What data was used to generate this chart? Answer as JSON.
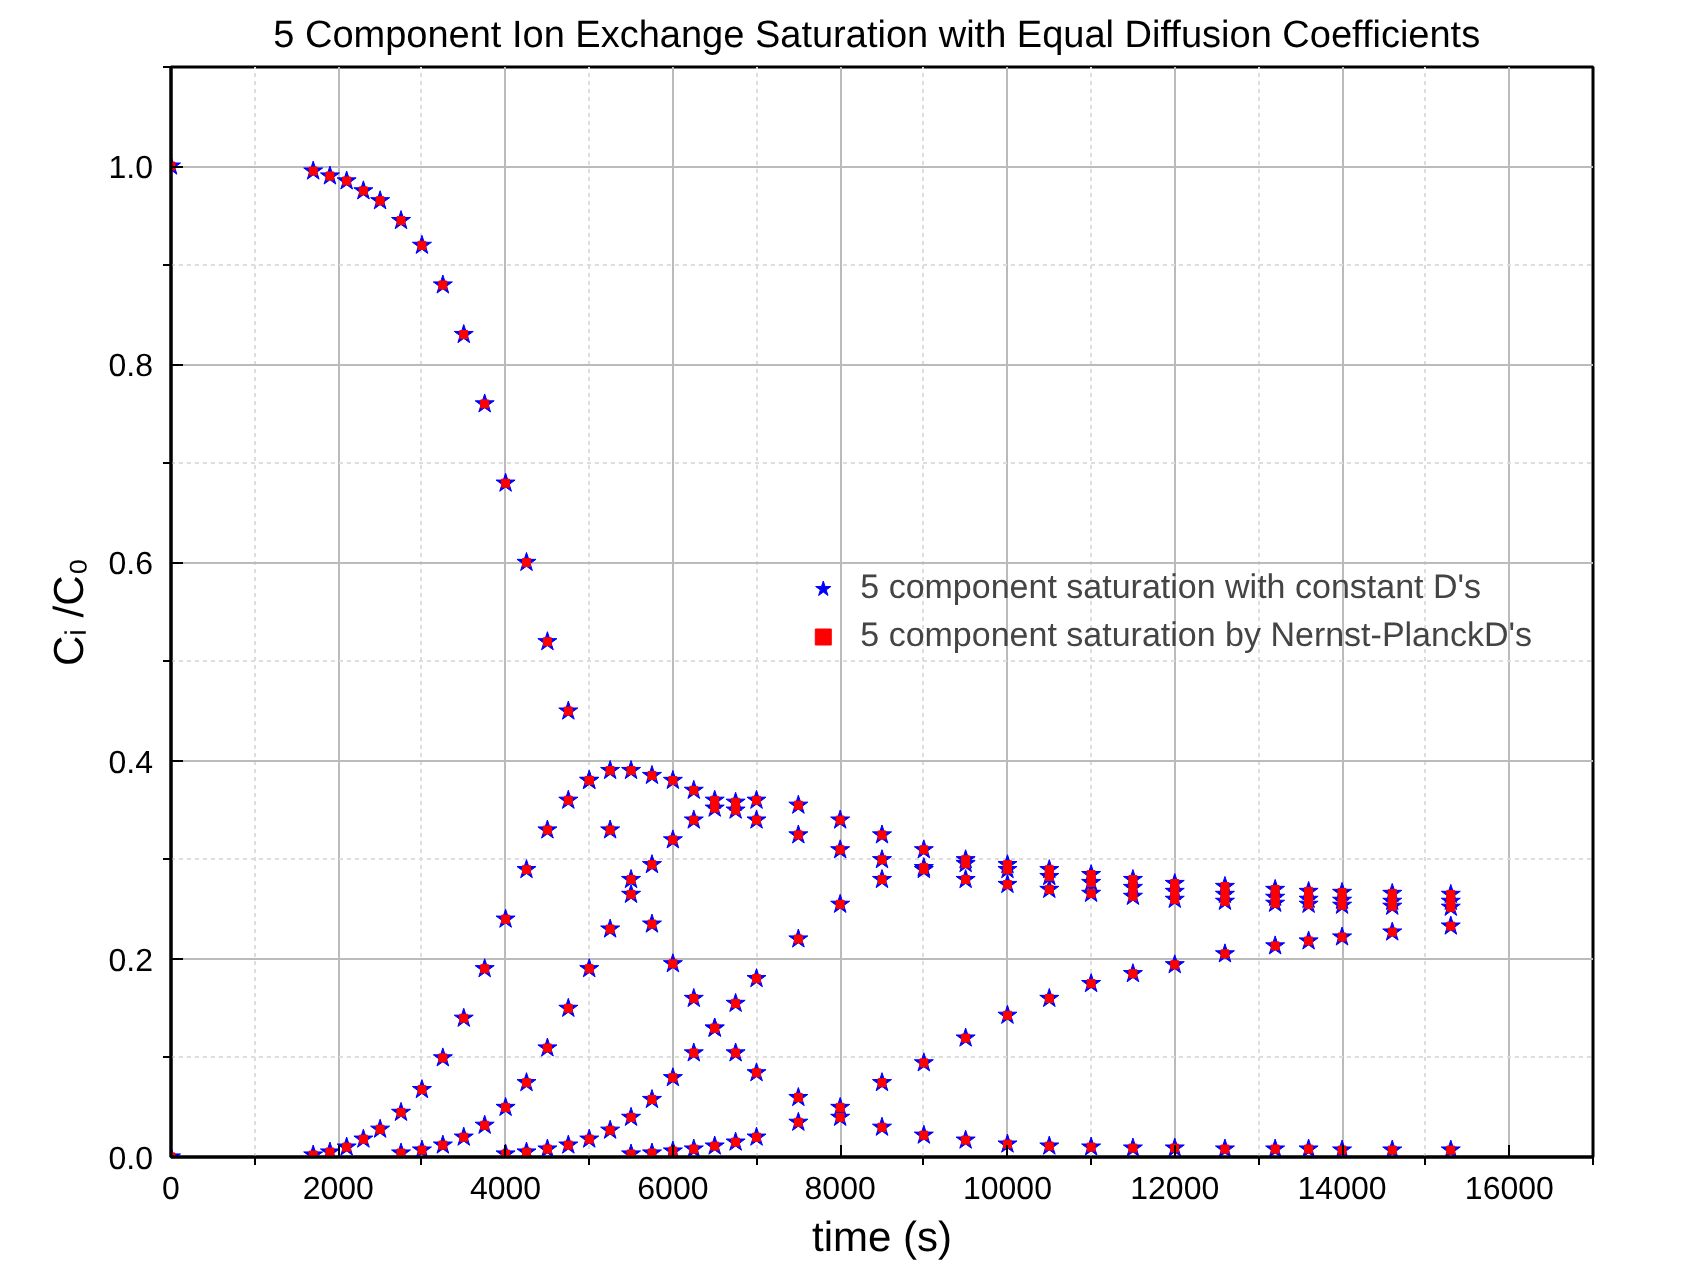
{
  "chart_data": {
    "type": "scatter",
    "title": "5 Component Ion Exchange Saturation with  Equal Diffusion Coefficients",
    "xlabel": "time (s)",
    "ylabel": "Cᵢ /C₀",
    "xlim": [
      0,
      17000
    ],
    "ylim": [
      0,
      1.1
    ],
    "xticks": [
      0,
      2000,
      4000,
      6000,
      8000,
      10000,
      12000,
      14000,
      16000
    ],
    "yticks": [
      {
        "value": 0,
        "label": "0.0"
      },
      0.2,
      0.4,
      0.6,
      0.8,
      {
        "value": 1,
        "label": "1.0"
      }
    ],
    "grid": true,
    "legend": "right",
    "series": [
      {
        "name": "5 component saturation with constant D's",
        "color": "#0000ff",
        "marker": "star",
        "x": [
          0,
          1700,
          1900,
          2100,
          2300,
          2500,
          2750,
          3000,
          3250,
          3500,
          3750,
          4000,
          4250,
          4500,
          4750,
          5000,
          5250,
          5500,
          5750,
          6000,
          6250,
          6500,
          6750,
          7000,
          7500,
          8000,
          8500,
          9000,
          9500,
          10000,
          10500,
          11000,
          11500,
          12000,
          12600,
          13200,
          13600,
          14000,
          14600,
          15300,
          0,
          1700,
          1900,
          2100,
          2300,
          2500,
          2750,
          3000,
          3250,
          3500,
          3750,
          4000,
          4250,
          4500,
          4750,
          5000,
          5250,
          5500,
          5750,
          6000,
          6250,
          6500,
          6750,
          7000,
          7500,
          8000,
          8500,
          9000,
          9500,
          10000,
          10500,
          11000,
          11500,
          12000,
          12600,
          13200,
          13600,
          14000,
          14600,
          15300,
          2750,
          3000,
          3250,
          3500,
          3750,
          4000,
          4250,
          4500,
          4750,
          5000,
          5250,
          5500,
          5750,
          6000,
          6250,
          6500,
          6750,
          7000,
          7500,
          8000,
          8500,
          9000,
          9500,
          10000,
          10500,
          11000,
          11500,
          12000,
          12600,
          13200,
          13600,
          14000,
          14600,
          15300,
          4000,
          4250,
          4500,
          4750,
          5000,
          5250,
          5500,
          5750,
          6000,
          6250,
          6500,
          6750,
          7000,
          7500,
          8000,
          8500,
          9000,
          9500,
          10000,
          10500,
          11000,
          11500,
          12000,
          12600,
          13200,
          13600,
          14000,
          14600,
          15300,
          5500,
          5750,
          6000,
          6250,
          6500,
          6750,
          7000,
          7500,
          8000,
          8500,
          9000,
          9500,
          10000,
          10500,
          11000,
          11500,
          12000,
          12600,
          13200,
          13600,
          14000,
          14600,
          15300
        ],
        "values": [
          1.0,
          0.995,
          0.99,
          0.985,
          0.975,
          0.965,
          0.945,
          0.92,
          0.88,
          0.83,
          0.76,
          0.68,
          0.6,
          0.52,
          0.45,
          0.38,
          0.33,
          0.28,
          0.235,
          0.195,
          0.16,
          0.13,
          0.105,
          0.085,
          0.06,
          0.04,
          0.03,
          0.022,
          0.017,
          0.013,
          0.011,
          0.01,
          0.009,
          0.009,
          0.008,
          0.008,
          0.008,
          0.007,
          0.007,
          0.007,
          0,
          0.002,
          0.005,
          0.01,
          0.018,
          0.028,
          0.045,
          0.068,
          0.1,
          0.14,
          0.19,
          0.24,
          0.29,
          0.33,
          0.36,
          0.38,
          0.39,
          0.39,
          0.385,
          0.38,
          0.37,
          0.36,
          0.35,
          0.34,
          0.325,
          0.31,
          0.3,
          0.29,
          0.28,
          0.275,
          0.27,
          0.266,
          0.263,
          0.26,
          0.258,
          0.256,
          0.255,
          0.254,
          0.253,
          0.252,
          0.004,
          0.007,
          0.012,
          0.02,
          0.032,
          0.05,
          0.075,
          0.11,
          0.15,
          0.19,
          0.23,
          0.265,
          0.295,
          0.32,
          0.34,
          0.352,
          0.358,
          0.36,
          0.355,
          0.34,
          0.325,
          0.31,
          0.3,
          0.29,
          0.283,
          0.277,
          0.272,
          0.268,
          0.265,
          0.262,
          0.26,
          0.259,
          0.258,
          0.258,
          0.003,
          0.005,
          0.008,
          0.012,
          0.018,
          0.027,
          0.04,
          0.058,
          0.08,
          0.105,
          0.13,
          0.155,
          0.18,
          0.22,
          0.255,
          0.28,
          0.292,
          0.296,
          0.295,
          0.29,
          0.285,
          0.28,
          0.276,
          0.273,
          0.27,
          0.268,
          0.267,
          0.266,
          0.265,
          0.003,
          0.004,
          0.006,
          0.008,
          0.011,
          0.015,
          0.02,
          0.035,
          0.05,
          0.075,
          0.095,
          0.12,
          0.143,
          0.16,
          0.175,
          0.185,
          0.194,
          0.205,
          0.213,
          0.218,
          0.222,
          0.227,
          0.233
        ]
      },
      {
        "name": "5 component saturation by Nernst-PlanckD's",
        "color": "#ff0000",
        "marker": "square",
        "x": [
          0,
          1700,
          1900,
          2100,
          2300,
          2500,
          2750,
          3000,
          3250,
          3500,
          3750,
          4000,
          4250,
          4500,
          4750,
          5000,
          5250,
          5500,
          5750,
          6000,
          6250,
          6500,
          6750,
          7000,
          7500,
          8000,
          8500,
          9000,
          9500,
          10000,
          10500,
          11000,
          11500,
          12000,
          12600,
          13200,
          13600,
          14000,
          14600,
          15300,
          0,
          1700,
          1900,
          2100,
          2300,
          2500,
          2750,
          3000,
          3250,
          3500,
          3750,
          4000,
          4250,
          4500,
          4750,
          5000,
          5250,
          5500,
          5750,
          6000,
          6250,
          6500,
          6750,
          7000,
          7500,
          8000,
          8500,
          9000,
          9500,
          10000,
          10500,
          11000,
          11500,
          12000,
          12600,
          13200,
          13600,
          14000,
          14600,
          15300,
          2750,
          3000,
          3250,
          3500,
          3750,
          4000,
          4250,
          4500,
          4750,
          5000,
          5250,
          5500,
          5750,
          6000,
          6250,
          6500,
          6750,
          7000,
          7500,
          8000,
          8500,
          9000,
          9500,
          10000,
          10500,
          11000,
          11500,
          12000,
          12600,
          13200,
          13600,
          14000,
          14600,
          15300,
          4000,
          4250,
          4500,
          4750,
          5000,
          5250,
          5500,
          5750,
          6000,
          6250,
          6500,
          6750,
          7000,
          7500,
          8000,
          8500,
          9000,
          9500,
          10000,
          10500,
          11000,
          11500,
          12000,
          12600,
          13200,
          13600,
          14000,
          14600,
          15300,
          5500,
          5750,
          6000,
          6250,
          6500,
          6750,
          7000,
          7500,
          8000,
          8500,
          9000,
          9500,
          10000,
          10500,
          11000,
          11500,
          12000,
          12600,
          13200,
          13600,
          14000,
          14600,
          15300
        ],
        "values": [
          1.0,
          0.995,
          0.99,
          0.985,
          0.975,
          0.965,
          0.945,
          0.92,
          0.88,
          0.83,
          0.76,
          0.68,
          0.6,
          0.52,
          0.45,
          0.38,
          0.33,
          0.28,
          0.235,
          0.195,
          0.16,
          0.13,
          0.105,
          0.085,
          0.06,
          0.04,
          0.03,
          0.022,
          0.017,
          0.013,
          0.011,
          0.01,
          0.009,
          0.009,
          0.008,
          0.008,
          0.008,
          0.007,
          0.007,
          0.007,
          0,
          0.002,
          0.005,
          0.01,
          0.018,
          0.028,
          0.045,
          0.068,
          0.1,
          0.14,
          0.19,
          0.24,
          0.29,
          0.33,
          0.36,
          0.38,
          0.39,
          0.39,
          0.385,
          0.38,
          0.37,
          0.36,
          0.35,
          0.34,
          0.325,
          0.31,
          0.3,
          0.29,
          0.28,
          0.275,
          0.27,
          0.266,
          0.263,
          0.26,
          0.258,
          0.256,
          0.255,
          0.254,
          0.253,
          0.252,
          0.004,
          0.007,
          0.012,
          0.02,
          0.032,
          0.05,
          0.075,
          0.11,
          0.15,
          0.19,
          0.23,
          0.265,
          0.295,
          0.32,
          0.34,
          0.352,
          0.358,
          0.36,
          0.355,
          0.34,
          0.325,
          0.31,
          0.3,
          0.29,
          0.283,
          0.277,
          0.272,
          0.268,
          0.265,
          0.262,
          0.26,
          0.259,
          0.258,
          0.258,
          0.003,
          0.005,
          0.008,
          0.012,
          0.018,
          0.027,
          0.04,
          0.058,
          0.08,
          0.105,
          0.13,
          0.155,
          0.18,
          0.22,
          0.255,
          0.28,
          0.292,
          0.296,
          0.295,
          0.29,
          0.285,
          0.28,
          0.276,
          0.273,
          0.27,
          0.268,
          0.267,
          0.266,
          0.265,
          0.003,
          0.004,
          0.006,
          0.008,
          0.011,
          0.015,
          0.02,
          0.035,
          0.05,
          0.075,
          0.095,
          0.12,
          0.143,
          0.16,
          0.175,
          0.185,
          0.194,
          0.205,
          0.213,
          0.218,
          0.222,
          0.227,
          0.233
        ]
      }
    ]
  }
}
